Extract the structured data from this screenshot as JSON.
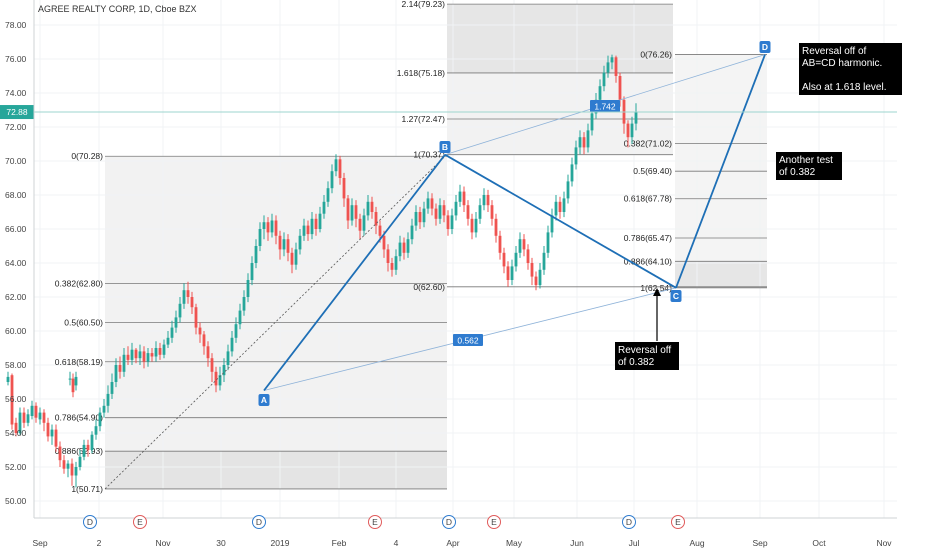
{
  "header": {
    "title": "AGREE REALTY CORP, 1D, Cboe BZX"
  },
  "chart_data": {
    "type": "candlestick",
    "symbol": "AGREE REALTY CORP",
    "interval": "1D",
    "exchange": "Cboe BZX",
    "ylim": [
      49.5,
      79.2
    ],
    "y_ticks": [
      50.0,
      52.0,
      54.0,
      56.0,
      58.0,
      60.0,
      62.0,
      64.0,
      66.0,
      68.0,
      70.0,
      72.0,
      74.0,
      76.0,
      78.0
    ],
    "y_tick_labels": [
      "50.00",
      "52.00",
      "54.00",
      "56.00",
      "58.00",
      "60.00",
      "62.00",
      "64.00",
      "66.00",
      "68.00",
      "70.00",
      "72.00",
      "74.00",
      "76.00",
      "78.00"
    ],
    "x_labels": [
      "Sep",
      "2",
      "Nov",
      "30",
      "2019",
      "Feb",
      "4",
      "Apr",
      "May",
      "Jun",
      "Jul",
      "Aug",
      "Sep",
      "Oct",
      "Nov"
    ],
    "current_price": {
      "label": "72.88",
      "value": 72.88,
      "color": "#26a69a"
    },
    "colors": {
      "up": "#26a69a",
      "down": "#ef5350",
      "pattern": "#1e6fb6",
      "fib_level": "#787878"
    },
    "pattern_points": [
      {
        "name": "A",
        "date": "2018-12-26",
        "price": 56.5
      },
      {
        "name": "B",
        "date": "2019-03-28",
        "price": 70.37
      },
      {
        "name": "C",
        "date": "2019-07-19",
        "price": 62.54
      },
      {
        "name": "D",
        "date": "2019-09-05",
        "price": 76.26
      }
    ],
    "ratios": [
      {
        "label": "1.742",
        "between": [
          "B",
          "D"
        ]
      },
      {
        "label": "0.562",
        "between": [
          "A",
          "C"
        ]
      }
    ],
    "fib_retracement_ab": [
      {
        "label": "0(70.28)",
        "price": 70.28
      },
      {
        "label": "0.382(62.80)",
        "price": 62.8
      },
      {
        "label": "0.5(60.50)",
        "price": 60.5
      },
      {
        "label": "0.618(58.19)",
        "price": 58.19
      },
      {
        "label": "0.786(54.90)",
        "price": 54.9
      },
      {
        "label": "0.886(52.93)",
        "price": 52.93
      },
      {
        "label": "1(50.71)",
        "price": 50.71
      }
    ],
    "fib_extension_bc": [
      {
        "label": "2.14(79.23)",
        "price": 79.23
      },
      {
        "label": "1.618(75.18)",
        "price": 75.18
      },
      {
        "label": "1.27(72.47)",
        "price": 72.47
      },
      {
        "label": "1(70.37)",
        "price": 70.37
      }
    ],
    "fib_retracement_cd": [
      {
        "label": "0(76.26)",
        "price": 76.26
      },
      {
        "label": "0.382(71.02)",
        "price": 71.02
      },
      {
        "label": "0.5(69.40)",
        "price": 69.4
      },
      {
        "label": "0.618(67.78)",
        "price": 67.78
      },
      {
        "label": "0.786(65.47)",
        "price": 65.47
      },
      {
        "label": "0.886(64.10)",
        "price": 64.1
      },
      {
        "label": "1(62.54)",
        "price": 62.54
      }
    ],
    "extra_level": {
      "label": "0(62.60)",
      "price": 62.6
    },
    "events": [
      {
        "type": "D",
        "month": "Oct"
      },
      {
        "type": "E",
        "month": "Oct"
      },
      {
        "type": "D",
        "month": "Dec"
      },
      {
        "type": "E",
        "month": "Feb"
      },
      {
        "type": "D",
        "month": "Mar"
      },
      {
        "type": "E",
        "month": "Apr"
      },
      {
        "type": "D",
        "month": "Jun"
      },
      {
        "type": "E",
        "month": "Jul"
      }
    ],
    "annotations": [
      {
        "lines": [
          "Reversal off of",
          "AB=CD harmonic.",
          "",
          "Also at 1.618 level."
        ]
      },
      {
        "lines": [
          "Another test",
          "of 0.382"
        ]
      },
      {
        "lines": [
          "Reversal off",
          "of 0.382"
        ]
      }
    ],
    "candles": [
      [
        70,
        57.2,
        57.2,
        56.8,
        57.6
      ],
      [
        73,
        57.2,
        56.4,
        56.1,
        57.5
      ],
      [
        76,
        56.8,
        57.3,
        56.5,
        57.6
      ],
      [
        8,
        57.0,
        57.3,
        56.8,
        57.6
      ],
      [
        12,
        57.4,
        54.5,
        54.2,
        57.5
      ],
      [
        16,
        54.6,
        54.0,
        53.8,
        54.9
      ],
      [
        20,
        54.0,
        55.2,
        53.9,
        55.5
      ],
      [
        24,
        55.2,
        54.6,
        54.3,
        55.5
      ],
      [
        28,
        54.6,
        55.1,
        54.4,
        55.4
      ],
      [
        32,
        55.0,
        55.6,
        54.8,
        55.9
      ],
      [
        36,
        55.6,
        54.9,
        54.6,
        55.8
      ],
      [
        40,
        54.8,
        55.2,
        54.5,
        55.5
      ],
      [
        44,
        55.2,
        54.6,
        54.1,
        55.4
      ],
      [
        48,
        54.6,
        53.8,
        53.5,
        54.9
      ],
      [
        52,
        53.8,
        54.2,
        53.3,
        54.5
      ],
      [
        56,
        54.2,
        53.2,
        52.9,
        54.5
      ],
      [
        60,
        53.2,
        52.4,
        52.0,
        53.5
      ],
      [
        64,
        52.4,
        51.9,
        51.6,
        52.7
      ],
      [
        68,
        51.9,
        52.2,
        51.4,
        52.4
      ],
      [
        72,
        52.2,
        51.5,
        50.9,
        52.5
      ],
      [
        76,
        51.5,
        52.0,
        50.8,
        52.3
      ],
      [
        80,
        52.0,
        52.6,
        51.8,
        53.0
      ],
      [
        84,
        52.6,
        53.3,
        52.4,
        53.6
      ],
      [
        88,
        53.3,
        53.0,
        52.6,
        53.6
      ],
      [
        92,
        53.0,
        53.9,
        52.8,
        54.1
      ],
      [
        96,
        53.9,
        54.4,
        53.6,
        54.8
      ],
      [
        100,
        54.4,
        55.2,
        54.1,
        55.5
      ],
      [
        104,
        55.2,
        55.6,
        54.9,
        56.0
      ],
      [
        108,
        55.6,
        56.3,
        55.2,
        56.8
      ],
      [
        112,
        56.3,
        57.0,
        56.0,
        57.5
      ],
      [
        116,
        57.0,
        58.0,
        56.7,
        58.4
      ],
      [
        120,
        58.0,
        57.6,
        57.2,
        58.5
      ],
      [
        124,
        57.6,
        58.6,
        57.3,
        59.0
      ],
      [
        128,
        58.6,
        58.3,
        58.0,
        59.1
      ],
      [
        132,
        58.3,
        58.9,
        58.0,
        59.3
      ],
      [
        136,
        58.9,
        58.4,
        58.1,
        59.0
      ],
      [
        140,
        58.4,
        58.8,
        58.0,
        59.2
      ],
      [
        144,
        58.8,
        58.2,
        57.8,
        59.1
      ],
      [
        148,
        58.2,
        58.7,
        57.9,
        59.0
      ],
      [
        152,
        58.7,
        58.5,
        58.2,
        59.0
      ],
      [
        156,
        58.5,
        59.0,
        58.2,
        59.4
      ],
      [
        160,
        59.0,
        58.6,
        58.3,
        59.3
      ],
      [
        164,
        58.6,
        59.2,
        58.4,
        59.5
      ],
      [
        168,
        59.2,
        59.6,
        59.0,
        60.0
      ],
      [
        172,
        59.6,
        60.2,
        59.3,
        60.6
      ],
      [
        176,
        60.2,
        60.8,
        59.9,
        61.2
      ],
      [
        180,
        60.8,
        61.6,
        60.5,
        62.0
      ],
      [
        184,
        61.6,
        62.4,
        61.3,
        62.8
      ],
      [
        188,
        62.4,
        62.0,
        61.6,
        62.9
      ],
      [
        192,
        62.0,
        61.4,
        61.0,
        62.3
      ],
      [
        196,
        61.4,
        60.2,
        59.8,
        61.6
      ],
      [
        200,
        60.2,
        59.8,
        59.3,
        60.5
      ],
      [
        204,
        59.8,
        59.1,
        58.6,
        60.0
      ],
      [
        208,
        59.1,
        58.4,
        57.9,
        59.4
      ],
      [
        212,
        58.4,
        57.6,
        57.0,
        58.7
      ],
      [
        216,
        57.6,
        56.8,
        56.4,
        57.9
      ],
      [
        220,
        56.8,
        57.4,
        56.5,
        57.9
      ],
      [
        224,
        57.4,
        58.0,
        57.0,
        58.4
      ],
      [
        228,
        58.0,
        58.8,
        57.7,
        59.2
      ],
      [
        232,
        58.8,
        59.6,
        58.5,
        60.0
      ],
      [
        236,
        59.6,
        60.4,
        59.3,
        60.8
      ],
      [
        240,
        60.4,
        61.2,
        60.1,
        61.6
      ],
      [
        244,
        61.2,
        62.0,
        60.9,
        62.4
      ],
      [
        248,
        62.0,
        63.0,
        61.7,
        63.4
      ],
      [
        252,
        63.0,
        64.0,
        62.7,
        64.4
      ],
      [
        256,
        64.0,
        65.0,
        63.7,
        65.4
      ],
      [
        260,
        65.0,
        66.0,
        64.7,
        66.4
      ],
      [
        264,
        66.0,
        66.4,
        65.4,
        66.8
      ],
      [
        268,
        66.4,
        65.8,
        65.3,
        66.7
      ],
      [
        272,
        65.8,
        66.5,
        65.5,
        66.9
      ],
      [
        276,
        66.5,
        65.6,
        65.1,
        66.8
      ],
      [
        280,
        65.6,
        64.8,
        64.2,
        65.9
      ],
      [
        284,
        64.8,
        65.4,
        64.4,
        65.8
      ],
      [
        288,
        65.4,
        64.6,
        64.1,
        65.7
      ],
      [
        292,
        64.6,
        63.9,
        63.4,
        64.9
      ],
      [
        296,
        63.9,
        64.8,
        63.6,
        65.2
      ],
      [
        300,
        64.8,
        65.6,
        64.5,
        66.0
      ],
      [
        304,
        65.6,
        66.2,
        65.3,
        66.6
      ],
      [
        308,
        66.2,
        65.7,
        65.3,
        66.5
      ],
      [
        312,
        65.7,
        66.6,
        65.4,
        67.0
      ],
      [
        316,
        66.6,
        66.0,
        65.6,
        66.9
      ],
      [
        320,
        66.0,
        66.9,
        65.8,
        67.3
      ],
      [
        324,
        66.9,
        67.6,
        66.6,
        68.0
      ],
      [
        328,
        67.6,
        68.4,
        67.3,
        68.8
      ],
      [
        332,
        68.4,
        69.4,
        68.1,
        69.8
      ],
      [
        336,
        69.4,
        70.1,
        69.1,
        70.4
      ],
      [
        340,
        70.1,
        69.0,
        68.6,
        70.3
      ],
      [
        344,
        69.0,
        67.8,
        67.3,
        69.3
      ],
      [
        348,
        67.8,
        66.5,
        66.0,
        68.0
      ],
      [
        352,
        66.5,
        67.4,
        66.2,
        67.8
      ],
      [
        356,
        67.4,
        66.6,
        66.1,
        67.7
      ],
      [
        360,
        66.6,
        65.9,
        65.4,
        66.9
      ],
      [
        364,
        65.9,
        66.8,
        65.6,
        67.2
      ],
      [
        368,
        66.8,
        67.6,
        66.5,
        68.0
      ],
      [
        372,
        67.6,
        67.0,
        66.6,
        67.9
      ],
      [
        376,
        67.0,
        66.2,
        65.7,
        67.3
      ],
      [
        380,
        66.2,
        65.6,
        65.2,
        66.5
      ],
      [
        384,
        65.6,
        64.8,
        64.3,
        65.9
      ],
      [
        388,
        64.8,
        64.0,
        63.5,
        65.1
      ],
      [
        392,
        64.0,
        63.6,
        63.2,
        64.3
      ],
      [
        396,
        63.6,
        64.4,
        63.3,
        64.8
      ],
      [
        400,
        64.4,
        65.2,
        64.1,
        65.6
      ],
      [
        404,
        65.2,
        64.6,
        64.2,
        65.5
      ],
      [
        408,
        64.6,
        65.4,
        64.3,
        65.8
      ],
      [
        412,
        65.4,
        66.2,
        65.1,
        66.6
      ],
      [
        416,
        66.2,
        67.0,
        65.9,
        67.4
      ],
      [
        420,
        67.0,
        66.4,
        66.0,
        67.3
      ],
      [
        424,
        66.4,
        67.2,
        66.1,
        67.6
      ],
      [
        428,
        67.2,
        67.8,
        66.9,
        68.2
      ],
      [
        432,
        67.8,
        67.2,
        66.8,
        68.1
      ],
      [
        436,
        67.2,
        66.6,
        66.2,
        67.5
      ],
      [
        440,
        66.6,
        67.4,
        66.3,
        67.8
      ],
      [
        444,
        67.4,
        66.8,
        66.4,
        67.7
      ],
      [
        448,
        66.8,
        66.0,
        65.6,
        67.1
      ],
      [
        452,
        66.0,
        66.8,
        65.7,
        67.2
      ],
      [
        456,
        66.8,
        67.6,
        66.5,
        68.0
      ],
      [
        460,
        67.6,
        68.2,
        67.3,
        68.6
      ],
      [
        464,
        68.2,
        67.4,
        67.0,
        68.5
      ],
      [
        468,
        67.4,
        66.6,
        66.2,
        67.7
      ],
      [
        472,
        66.6,
        65.8,
        65.4,
        66.9
      ],
      [
        476,
        65.8,
        66.6,
        65.5,
        67.0
      ],
      [
        480,
        66.6,
        67.4,
        66.3,
        67.8
      ],
      [
        484,
        67.4,
        68.0,
        67.1,
        68.4
      ],
      [
        488,
        68.0,
        67.4,
        67.0,
        68.3
      ],
      [
        492,
        67.4,
        66.6,
        66.2,
        67.7
      ],
      [
        496,
        66.6,
        65.6,
        65.2,
        66.9
      ],
      [
        500,
        65.6,
        64.6,
        64.2,
        65.9
      ],
      [
        504,
        64.6,
        63.8,
        63.4,
        64.9
      ],
      [
        508,
        63.8,
        63.0,
        62.6,
        64.1
      ],
      [
        512,
        63.0,
        63.8,
        62.7,
        64.2
      ],
      [
        516,
        63.8,
        64.6,
        63.5,
        65.0
      ],
      [
        520,
        64.6,
        65.4,
        64.3,
        65.8
      ],
      [
        524,
        65.4,
        64.8,
        64.4,
        65.7
      ],
      [
        528,
        64.8,
        64.0,
        63.6,
        65.1
      ],
      [
        532,
        64.0,
        63.2,
        62.7,
        64.3
      ],
      [
        536,
        63.2,
        62.7,
        62.4,
        63.5
      ],
      [
        540,
        62.7,
        63.6,
        62.5,
        64.0
      ],
      [
        544,
        63.6,
        64.6,
        63.3,
        65.0
      ],
      [
        548,
        64.6,
        65.8,
        64.3,
        66.2
      ],
      [
        552,
        65.8,
        66.8,
        65.5,
        67.2
      ],
      [
        556,
        66.8,
        67.6,
        66.5,
        68.0
      ],
      [
        560,
        67.6,
        67.0,
        66.6,
        67.9
      ],
      [
        564,
        67.0,
        67.8,
        66.7,
        68.2
      ],
      [
        568,
        67.8,
        68.8,
        67.5,
        69.2
      ],
      [
        572,
        68.8,
        69.8,
        68.5,
        70.2
      ],
      [
        576,
        69.8,
        70.8,
        69.5,
        71.2
      ],
      [
        580,
        70.8,
        71.4,
        70.4,
        71.8
      ],
      [
        584,
        71.4,
        70.8,
        70.4,
        71.7
      ],
      [
        588,
        70.8,
        71.8,
        70.5,
        72.2
      ],
      [
        592,
        71.8,
        72.8,
        71.5,
        73.2
      ],
      [
        596,
        72.8,
        73.6,
        72.5,
        74.0
      ],
      [
        600,
        73.6,
        74.4,
        73.3,
        74.8
      ],
      [
        604,
        74.4,
        75.2,
        74.1,
        75.6
      ],
      [
        608,
        75.2,
        75.8,
        74.9,
        76.2
      ],
      [
        612,
        75.8,
        76.1,
        75.4,
        76.26
      ],
      [
        616,
        76.1,
        75.0,
        74.6,
        76.2
      ],
      [
        620,
        75.0,
        73.6,
        73.2,
        75.2
      ],
      [
        624,
        73.6,
        72.2,
        71.6,
        73.8
      ],
      [
        628,
        72.2,
        71.4,
        70.8,
        72.4
      ],
      [
        632,
        71.4,
        72.2,
        71.0,
        72.6
      ],
      [
        636,
        72.2,
        72.9,
        71.8,
        73.4
      ]
    ]
  }
}
